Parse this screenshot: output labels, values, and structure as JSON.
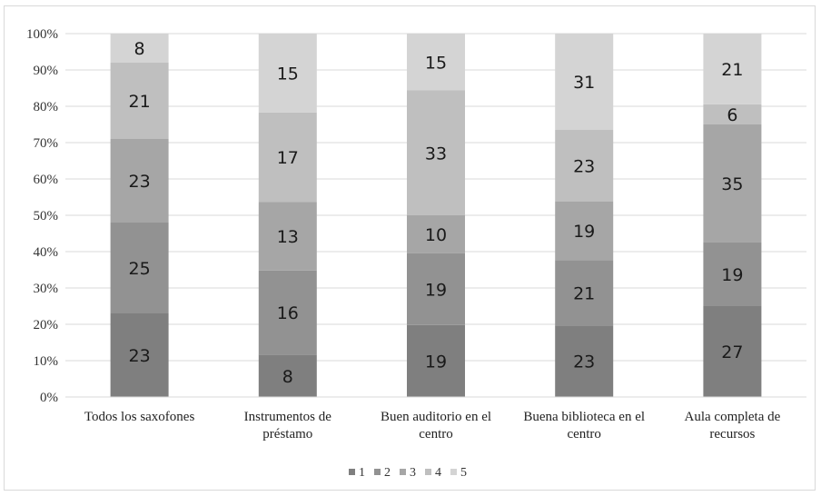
{
  "chart_data": {
    "type": "bar",
    "stacked": "percent",
    "categories": [
      [
        "Todos los saxofones"
      ],
      [
        "Instrumentos de",
        "préstamo"
      ],
      [
        "Buen auditorio en el",
        "centro"
      ],
      [
        "Buena biblioteca en el",
        "centro"
      ],
      [
        "Aula completa de",
        "recursos"
      ]
    ],
    "series": [
      {
        "name": "1",
        "color": "#7f7f7f",
        "values": [
          23,
          8,
          19,
          23,
          27
        ]
      },
      {
        "name": "2",
        "color": "#929292",
        "values": [
          25,
          16,
          19,
          21,
          19
        ]
      },
      {
        "name": "3",
        "color": "#a6a6a6",
        "values": [
          23,
          13,
          10,
          19,
          35
        ]
      },
      {
        "name": "4",
        "color": "#bfbfbf",
        "values": [
          21,
          17,
          33,
          23,
          6
        ]
      },
      {
        "name": "5",
        "color": "#d4d4d4",
        "values": [
          8,
          15,
          15,
          31,
          21
        ]
      }
    ],
    "y_ticks": [
      "0%",
      "10%",
      "20%",
      "30%",
      "40%",
      "50%",
      "60%",
      "70%",
      "80%",
      "90%",
      "100%"
    ],
    "ylim": [
      0,
      100
    ],
    "grid": true,
    "legend_position": "bottom",
    "title": "",
    "xlabel": "",
    "ylabel": ""
  }
}
